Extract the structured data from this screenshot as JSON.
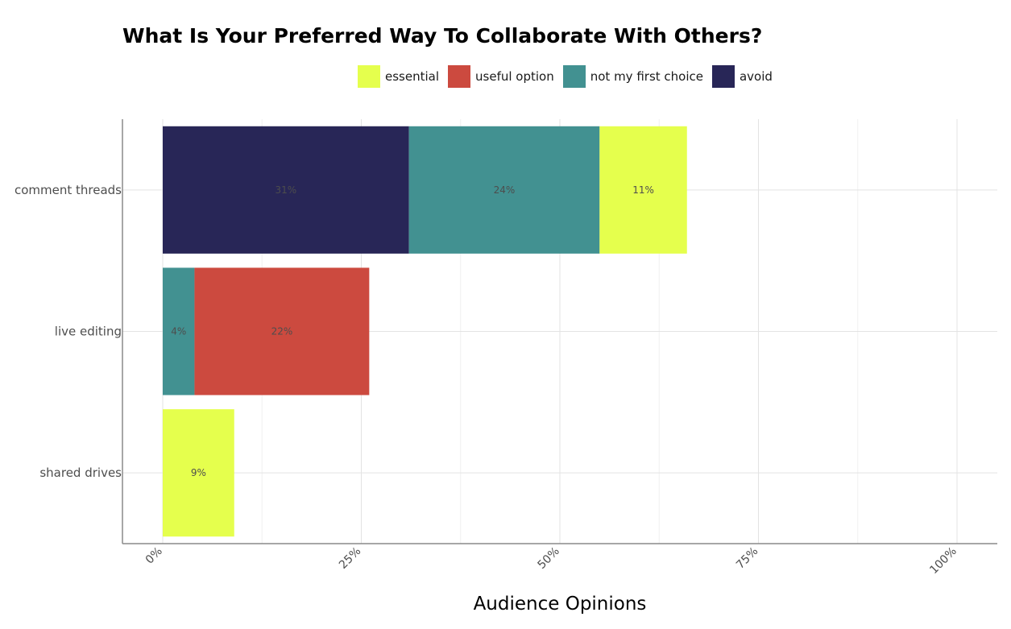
{
  "chart_data": {
    "type": "bar",
    "orientation": "horizontal",
    "stacked": true,
    "title": "What Is Your Preferred Way To Collaborate With Others?",
    "xlabel": "Audience Opinions",
    "ylabel": "",
    "xlim": [
      0,
      100
    ],
    "x_ticks": [
      "0%",
      "25%",
      "50%",
      "75%",
      "100%"
    ],
    "grid": true,
    "legend_position": "top",
    "categories": [
      "comment threads",
      "live editing",
      "shared drives"
    ],
    "legend": [
      {
        "name": "essential",
        "color": "#e5ff4d"
      },
      {
        "name": "useful option",
        "color": "#cc4a3f"
      },
      {
        "name": "not my first choice",
        "color": "#429191"
      },
      {
        "name": "avoid",
        "color": "#282657"
      }
    ],
    "stack_order": [
      "avoid",
      "not my first choice",
      "useful option",
      "essential"
    ],
    "series": [
      {
        "name": "essential",
        "values": [
          11,
          0,
          9
        ],
        "labels": [
          "11%",
          "",
          "9%"
        ]
      },
      {
        "name": "useful option",
        "values": [
          0,
          22,
          0
        ],
        "labels": [
          "",
          "22%",
          ""
        ]
      },
      {
        "name": "not my first choice",
        "values": [
          24,
          4,
          0
        ],
        "labels": [
          "24%",
          "4%",
          ""
        ]
      },
      {
        "name": "avoid",
        "values": [
          31,
          0,
          0
        ],
        "labels": [
          "31%",
          "",
          ""
        ]
      }
    ]
  }
}
